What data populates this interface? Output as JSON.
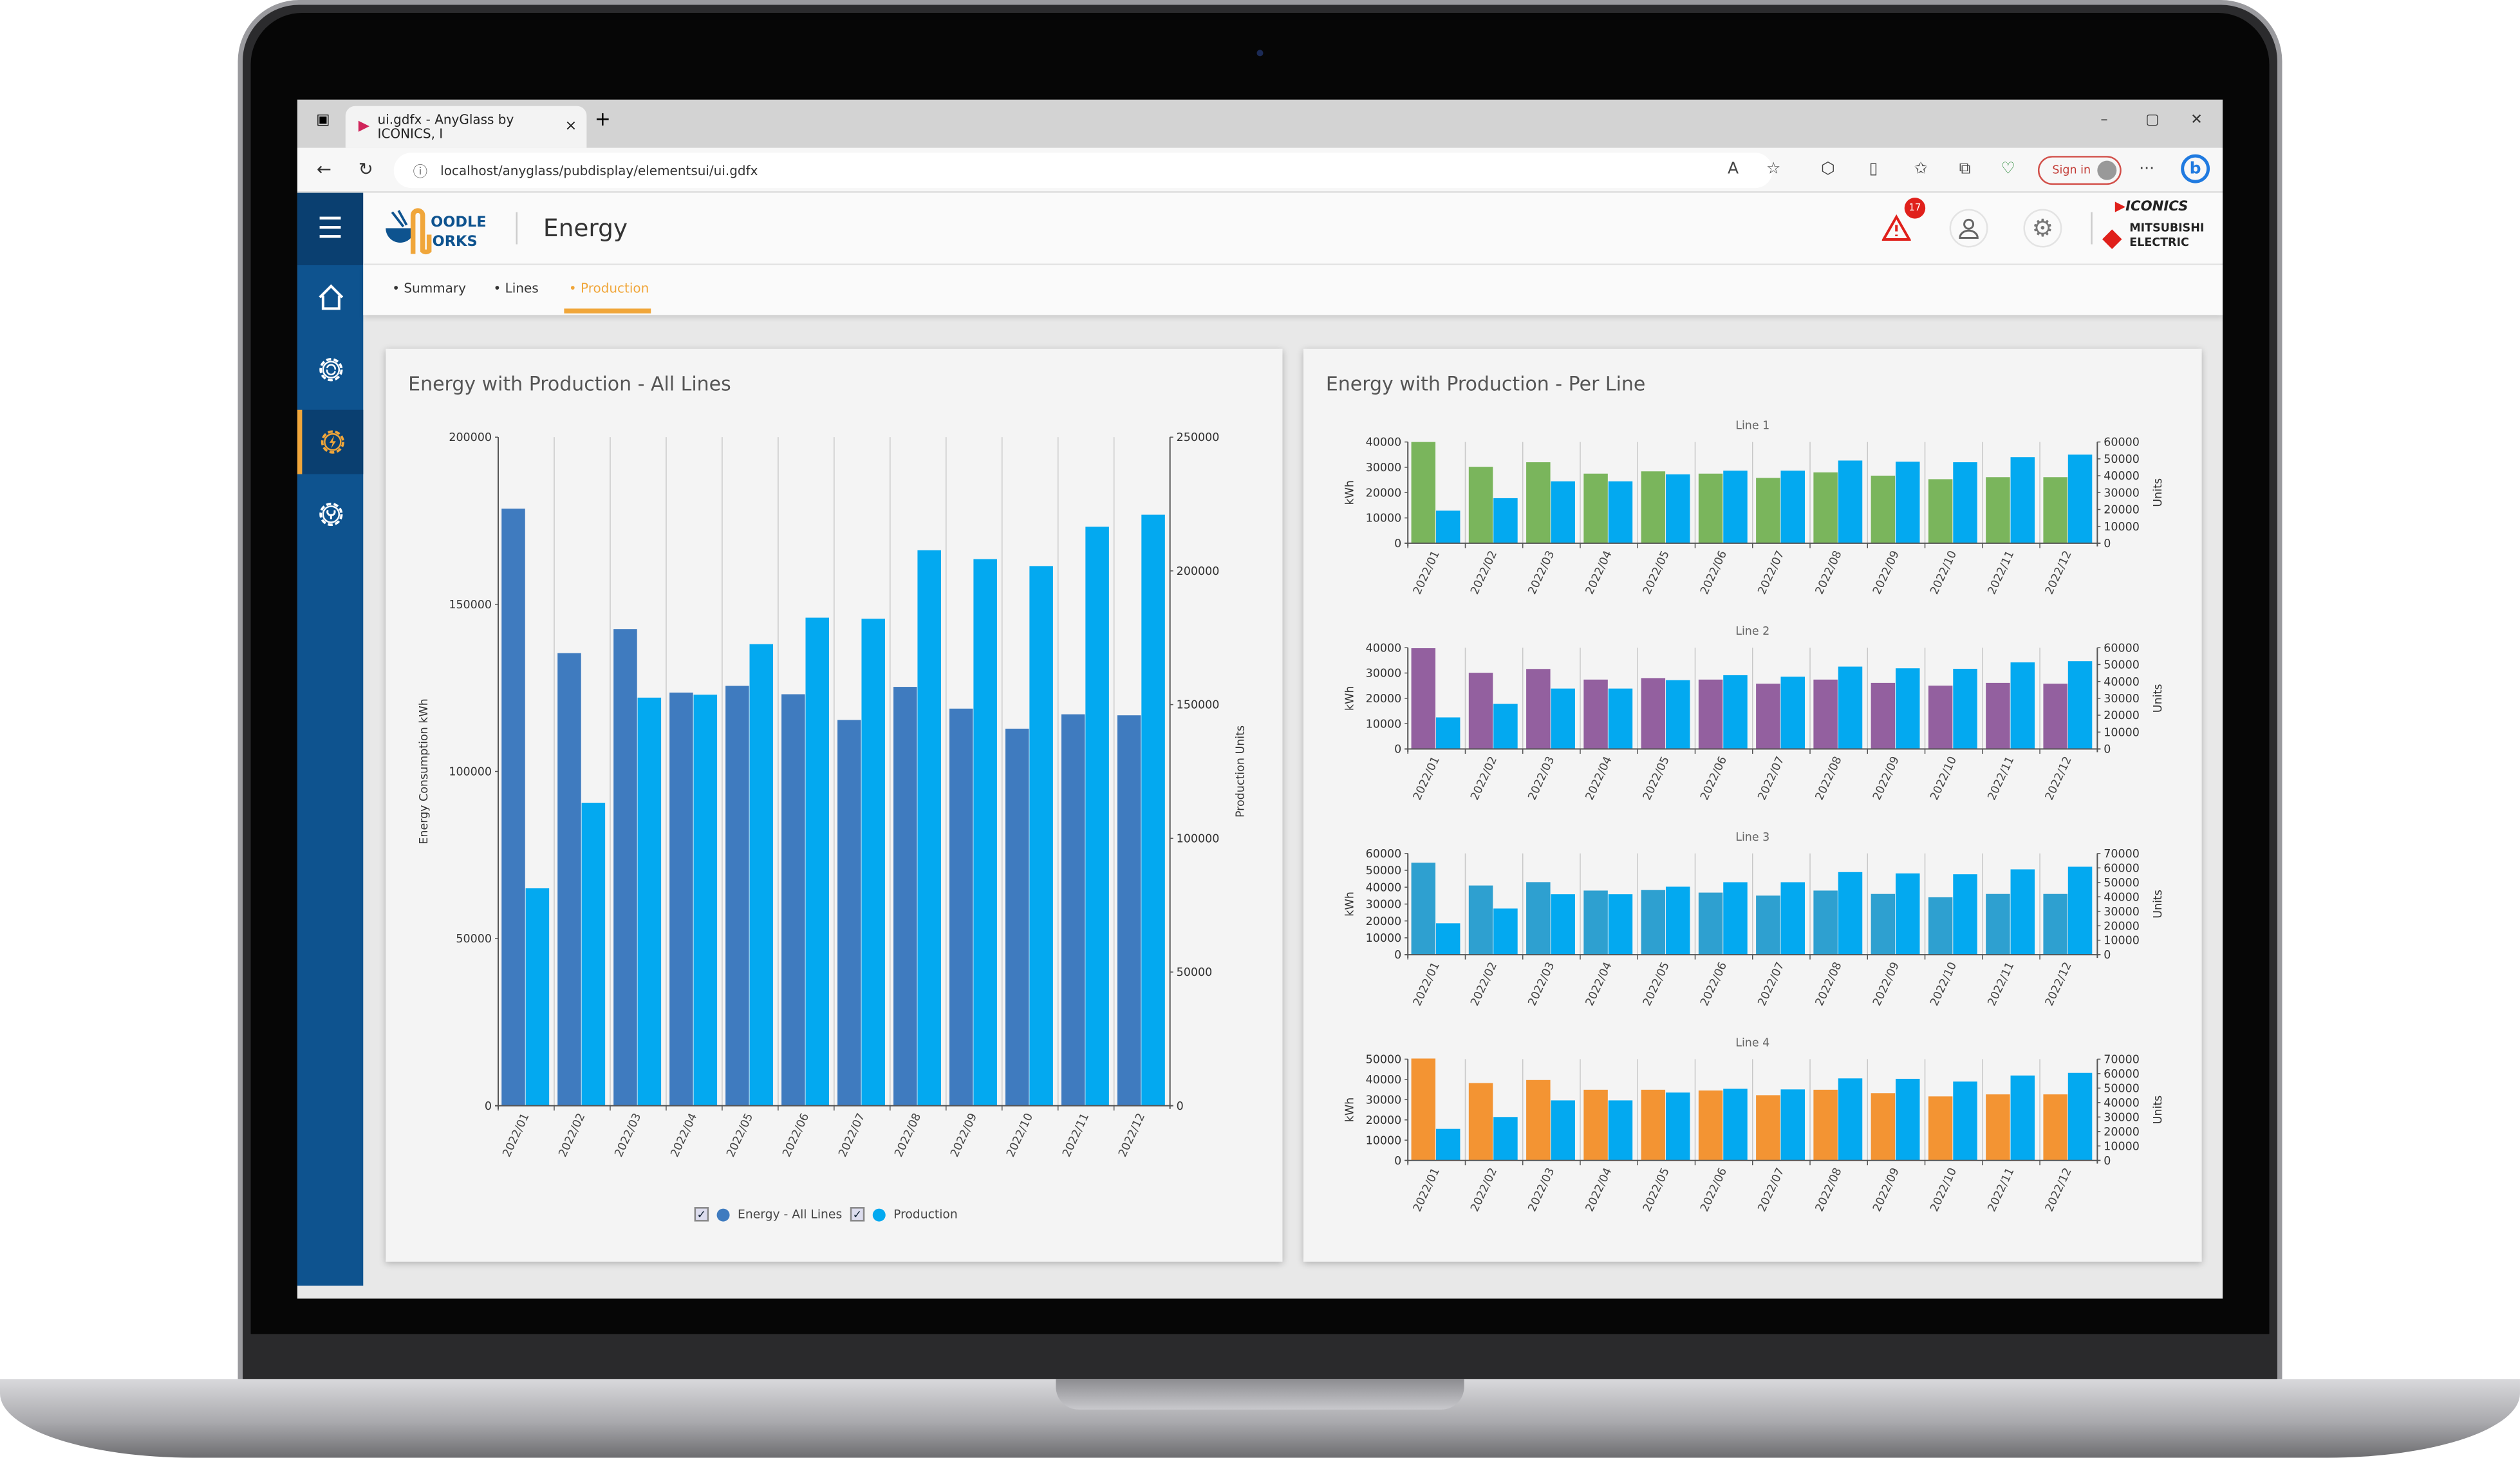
{
  "browser": {
    "tab_title": "ui.gdfx - AnyGlass by ICONICS, I",
    "tab_close": "×",
    "new_tab": "+",
    "url": "localhost/anyglass/pubdisplay/elementsui/ui.gdfx",
    "sign_in": "Sign in",
    "more": "···",
    "minimize": "–",
    "restore": "▢",
    "close": "✕"
  },
  "header": {
    "title": "Energy",
    "logo_text": "NOODLE WORKS",
    "alert_count": "17",
    "brand_iconics": "ICONICS",
    "brand_mitsubishi": "MITSUBISHI ELECTRIC"
  },
  "sidebar": {
    "items": [
      {
        "icon": "home-icon"
      },
      {
        "icon": "gear-sync-icon"
      },
      {
        "icon": "gear-lightning-icon",
        "active": true
      },
      {
        "icon": "gear-wrench-icon"
      }
    ]
  },
  "subnav": {
    "tabs": [
      {
        "label": "Summary"
      },
      {
        "label": "Lines"
      },
      {
        "label": "Production",
        "active": true
      }
    ]
  },
  "colors": {
    "sidebar": "#0e538f",
    "accent": "#f0a63a",
    "energy_all": "#3f7bbf",
    "production": "#03a9f0",
    "line1": "#7ab55c",
    "line2": "#93609f",
    "line3": "#2ea0d0",
    "line4": "#f39433"
  },
  "left_card": {
    "title": "Energy with Production - All Lines"
  },
  "right_card": {
    "title": "Energy with Production - Per Line"
  },
  "legend": {
    "checked": "✓",
    "items": [
      "Energy - All Lines",
      "Production"
    ]
  },
  "chart_data": [
    {
      "type": "bar",
      "title": "",
      "categories": [
        "2022/01",
        "2022/02",
        "2022/03",
        "2022/04",
        "2022/05",
        "2022/06",
        "2022/07",
        "2022/08",
        "2022/09",
        "2022/10",
        "2022/11",
        "2022/12"
      ],
      "ylabel": "Energy Consumption kWh",
      "y2label": "Production Units",
      "ylim": [
        0,
        200000
      ],
      "y2lim": [
        0,
        250000
      ],
      "yticks": [
        "0",
        "50000",
        "100000",
        "150000",
        "200000"
      ],
      "y2ticks": [
        "0",
        "50000",
        "100000",
        "150000",
        "200000",
        "250000"
      ],
      "grid": "vertical",
      "legend": "bottom",
      "series": [
        {
          "name": "Energy - All Lines",
          "axis": "left",
          "color": "#3f7bbf",
          "values": [
            178600,
            135400,
            142600,
            123600,
            125600,
            123100,
            115400,
            125300,
            118800,
            112800,
            117100,
            116800
          ]
        },
        {
          "name": "Production",
          "axis": "right",
          "color": "#03a9f0",
          "values": [
            81300,
            113300,
            152600,
            153700,
            172600,
            182500,
            182100,
            207700,
            204400,
            201800,
            216500,
            221000
          ]
        }
      ]
    },
    {
      "type": "bar",
      "title": "Line 1",
      "categories": [
        "2022/01",
        "2022/02",
        "2022/03",
        "2022/04",
        "2022/05",
        "2022/06",
        "2022/07",
        "2022/08",
        "2022/09",
        "2022/10",
        "2022/11",
        "2022/12"
      ],
      "ylabel": "kWh",
      "y2label": "Units",
      "ylim": [
        0,
        40000
      ],
      "y2lim": [
        0,
        60000
      ],
      "yticks": [
        "0",
        "10000",
        "20000",
        "30000",
        "40000"
      ],
      "y2ticks": [
        "0",
        "10000",
        "20000",
        "30000",
        "40000",
        "50000",
        "60000"
      ],
      "series": [
        {
          "axis": "left",
          "color": "#7ab55c",
          "values": [
            40000,
            30200,
            32000,
            27500,
            28400,
            27500,
            25800,
            28000,
            26700,
            25300,
            26100,
            26100
          ]
        },
        {
          "axis": "right",
          "color": "#03a9f0",
          "values": [
            19300,
            26700,
            36700,
            36700,
            40800,
            43000,
            43000,
            49000,
            48300,
            48000,
            51000,
            52500
          ]
        }
      ]
    },
    {
      "type": "bar",
      "title": "Line 2",
      "categories": [
        "2022/01",
        "2022/02",
        "2022/03",
        "2022/04",
        "2022/05",
        "2022/06",
        "2022/07",
        "2022/08",
        "2022/09",
        "2022/10",
        "2022/11",
        "2022/12"
      ],
      "ylabel": "kWh",
      "y2label": "Units",
      "ylim": [
        0,
        40000
      ],
      "y2lim": [
        0,
        60000
      ],
      "yticks": [
        "0",
        "10000",
        "20000",
        "30000",
        "40000"
      ],
      "y2ticks": [
        "0",
        "10000",
        "20000",
        "30000",
        "40000",
        "50000",
        "60000"
      ],
      "series": [
        {
          "axis": "left",
          "color": "#93609f",
          "values": [
            39800,
            30100,
            31600,
            27400,
            28000,
            27400,
            25800,
            27400,
            26100,
            25000,
            26100,
            25800
          ]
        },
        {
          "axis": "right",
          "color": "#03a9f0",
          "values": [
            18700,
            26700,
            35800,
            35800,
            40800,
            43700,
            42800,
            48800,
            47800,
            47500,
            51300,
            52000
          ]
        }
      ]
    },
    {
      "type": "bar",
      "title": "Line 3",
      "categories": [
        "2022/01",
        "2022/02",
        "2022/03",
        "2022/04",
        "2022/05",
        "2022/06",
        "2022/07",
        "2022/08",
        "2022/09",
        "2022/10",
        "2022/11",
        "2022/12"
      ],
      "ylabel": "kWh",
      "y2label": "Units",
      "ylim": [
        0,
        60000
      ],
      "y2lim": [
        0,
        70000
      ],
      "yticks": [
        "0",
        "10000",
        "20000",
        "30000",
        "40000",
        "50000",
        "60000"
      ],
      "y2ticks": [
        "0",
        "10000",
        "20000",
        "30000",
        "40000",
        "50000",
        "60000",
        "70000"
      ],
      "series": [
        {
          "axis": "left",
          "color": "#2ea0d0",
          "values": [
            54500,
            41000,
            43000,
            38000,
            38300,
            36800,
            35000,
            38000,
            36000,
            34000,
            36000,
            36000
          ]
        },
        {
          "axis": "right",
          "color": "#03a9f0",
          "values": [
            21700,
            31900,
            41800,
            41800,
            47000,
            50100,
            50100,
            57100,
            56200,
            55600,
            59000,
            60800
          ]
        }
      ]
    },
    {
      "type": "bar",
      "title": "Line 4",
      "categories": [
        "2022/01",
        "2022/02",
        "2022/03",
        "2022/04",
        "2022/05",
        "2022/06",
        "2022/07",
        "2022/08",
        "2022/09",
        "2022/10",
        "2022/11",
        "2022/12"
      ],
      "ylabel": "kWh",
      "y2label": "Units",
      "ylim": [
        0,
        50000
      ],
      "y2lim": [
        0,
        70000
      ],
      "yticks": [
        "0",
        "10000",
        "20000",
        "30000",
        "40000",
        "50000"
      ],
      "y2ticks": [
        "0",
        "10000",
        "20000",
        "30000",
        "40000",
        "50000",
        "60000",
        "70000"
      ],
      "series": [
        {
          "axis": "left",
          "color": "#f39433",
          "values": [
            50300,
            38200,
            39700,
            34900,
            34900,
            34500,
            32200,
            34900,
            33200,
            31600,
            32600,
            32600
          ]
        },
        {
          "axis": "right",
          "color": "#03a9f0",
          "values": [
            21800,
            30000,
            41500,
            41500,
            46900,
            49500,
            49100,
            56700,
            56400,
            54500,
            58700,
            60500
          ]
        }
      ]
    }
  ]
}
